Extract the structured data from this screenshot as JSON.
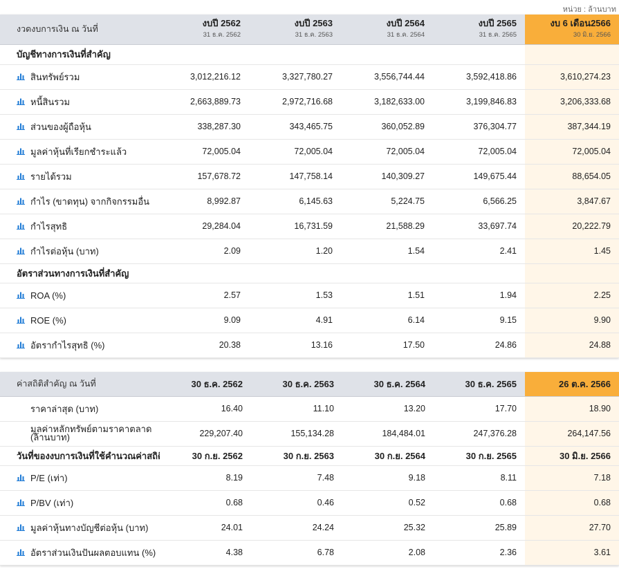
{
  "unit_note": "หน่วย : ล้านบาท",
  "colors": {
    "header_bg": "#dfe2e8",
    "highlight_header": "#f9ae3a",
    "highlight_col": "#fff6e8",
    "icon": "#1f7bd6"
  },
  "icon_name": "bar-chart-icon",
  "table1": {
    "corner": "งวดงบการเงิน ณ วันที่",
    "columns": [
      {
        "title": "งบปี 2562",
        "sub": "31 ธ.ค. 2562"
      },
      {
        "title": "งบปี 2563",
        "sub": "31 ธ.ค. 2563"
      },
      {
        "title": "งบปี 2564",
        "sub": "31 ธ.ค. 2564"
      },
      {
        "title": "งบปี 2565",
        "sub": "31 ธ.ค. 2565"
      },
      {
        "title": "งบ 6 เดือน2566",
        "sub": "30 มิ.ย. 2566"
      }
    ],
    "section1": "บัญชีทางการเงินที่สำคัญ",
    "rows1": [
      {
        "label": "สินทรัพย์รวม",
        "v": [
          "3,012,216.12",
          "3,327,780.27",
          "3,556,744.44",
          "3,592,418.86",
          "3,610,274.23"
        ]
      },
      {
        "label": "หนี้สินรวม",
        "v": [
          "2,663,889.73",
          "2,972,716.68",
          "3,182,633.00",
          "3,199,846.83",
          "3,206,333.68"
        ]
      },
      {
        "label": "ส่วนของผู้ถือหุ้น",
        "v": [
          "338,287.30",
          "343,465.75",
          "360,052.89",
          "376,304.77",
          "387,344.19"
        ]
      },
      {
        "label": "มูลค่าหุ้นที่เรียกชำระแล้ว",
        "v": [
          "72,005.04",
          "72,005.04",
          "72,005.04",
          "72,005.04",
          "72,005.04"
        ]
      },
      {
        "label": "รายได้รวม",
        "v": [
          "157,678.72",
          "147,758.14",
          "140,309.27",
          "149,675.44",
          "88,654.05"
        ]
      },
      {
        "label": "กำไร (ขาดทุน) จากกิจกรรมอื่น",
        "v": [
          "8,992.87",
          "6,145.63",
          "5,224.75",
          "6,566.25",
          "3,847.67"
        ]
      },
      {
        "label": "กำไรสุทธิ",
        "v": [
          "29,284.04",
          "16,731.59",
          "21,588.29",
          "33,697.74",
          "20,222.79"
        ]
      },
      {
        "label": "กำไรต่อหุ้น (บาท)",
        "v": [
          "2.09",
          "1.20",
          "1.54",
          "2.41",
          "1.45"
        ]
      }
    ],
    "section2": "อัตราส่วนทางการเงินที่สำคัญ",
    "rows2": [
      {
        "label": "ROA (%)",
        "v": [
          "2.57",
          "1.53",
          "1.51",
          "1.94",
          "2.25"
        ]
      },
      {
        "label": "ROE (%)",
        "v": [
          "9.09",
          "4.91",
          "6.14",
          "9.15",
          "9.90"
        ]
      },
      {
        "label": "อัตรากำไรสุทธิ (%)",
        "v": [
          "20.38",
          "13.16",
          "17.50",
          "24.86",
          "24.88"
        ]
      }
    ]
  },
  "table2": {
    "corner": "ค่าสถิติสำคัญ ณ วันที่",
    "columns": [
      "30 ธ.ค. 2562",
      "30 ธ.ค. 2563",
      "30 ธ.ค. 2564",
      "30 ธ.ค. 2565",
      "26 ต.ค. 2566"
    ],
    "rows_plain": [
      {
        "label": "ราคาล่าสุด (บาท)",
        "v": [
          "16.40",
          "11.10",
          "13.20",
          "17.70",
          "18.90"
        ]
      },
      {
        "label": "มูลค่าหลักทรัพย์ตามราคาตลาด (ล้านบาท)",
        "label_line1": "มูลค่าหลักทรัพย์ตามราคาตลาด",
        "label_line2": "(ล้านบาท)",
        "v": [
          "229,207.40",
          "155,134.28",
          "184,484.01",
          "247,376.28",
          "264,147.56"
        ]
      }
    ],
    "section": "วันที่ของงบการเงินที่ใช้คำนวณค่าสถิติ",
    "section_dates": [
      "30 ก.ย. 2562",
      "30 ก.ย. 2563",
      "30 ก.ย. 2564",
      "30 ก.ย. 2565",
      "30 มิ.ย. 2566"
    ],
    "rows": [
      {
        "label": "P/E (เท่า)",
        "v": [
          "8.19",
          "7.48",
          "9.18",
          "8.11",
          "7.18"
        ]
      },
      {
        "label": "P/BV (เท่า)",
        "v": [
          "0.68",
          "0.46",
          "0.52",
          "0.68",
          "0.68"
        ]
      },
      {
        "label": "มูลค่าหุ้นทางบัญชีต่อหุ้น (บาท)",
        "v": [
          "24.01",
          "24.24",
          "25.32",
          "25.89",
          "27.70"
        ]
      },
      {
        "label": "อัตราส่วนเงินปันผลตอบแทน (%)",
        "v": [
          "4.38",
          "6.78",
          "2.08",
          "2.36",
          "3.61"
        ]
      }
    ]
  }
}
